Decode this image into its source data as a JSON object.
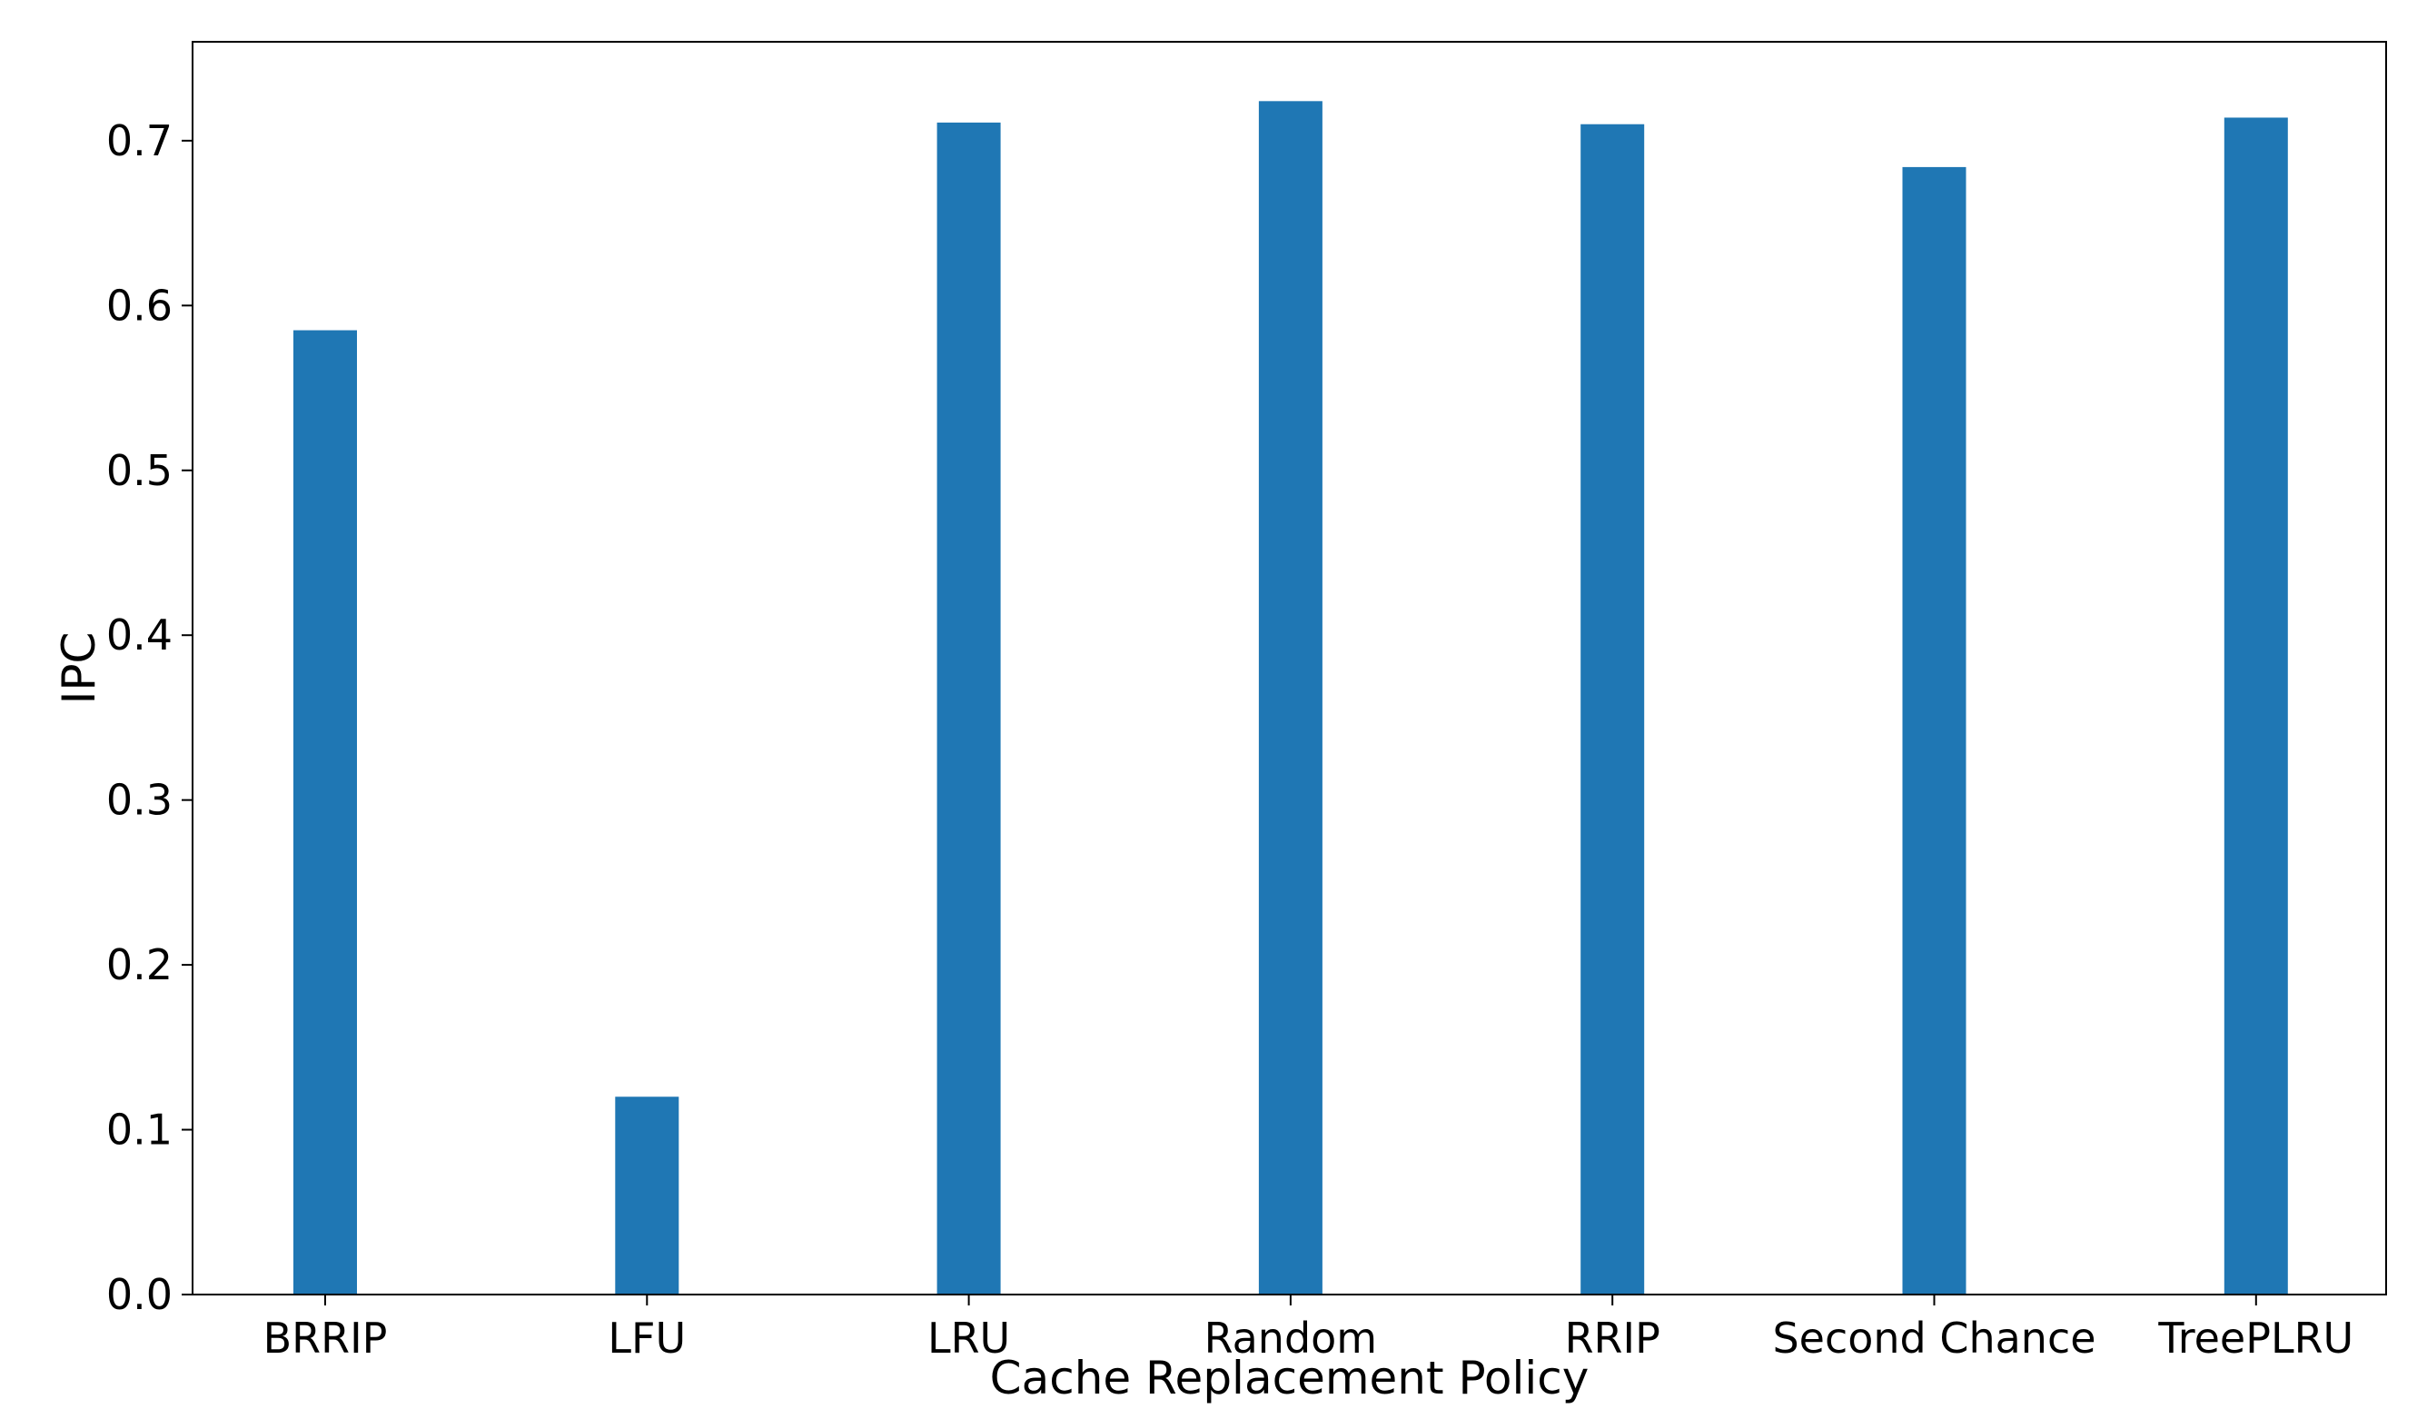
{
  "chart_data": {
    "type": "bar",
    "title": "",
    "xlabel": "Cache Replacement Policy",
    "ylabel": "IPC",
    "categories": [
      "BRRIP",
      "LFU",
      "LRU",
      "Random",
      "RRIP",
      "Second Chance",
      "TreePLRU"
    ],
    "values": [
      0.585,
      0.12,
      0.711,
      0.724,
      0.71,
      0.684,
      0.714
    ],
    "ylim": [
      0,
      0.76
    ],
    "yticks": [
      0.0,
      0.1,
      0.2,
      0.3,
      0.4,
      0.5,
      0.6,
      0.7
    ],
    "ytick_labels": [
      "0.0",
      "0.1",
      "0.2",
      "0.3",
      "0.4",
      "0.5",
      "0.6",
      "0.7"
    ],
    "grid": false,
    "legend": "none",
    "bar_color": "#1f77b4"
  }
}
